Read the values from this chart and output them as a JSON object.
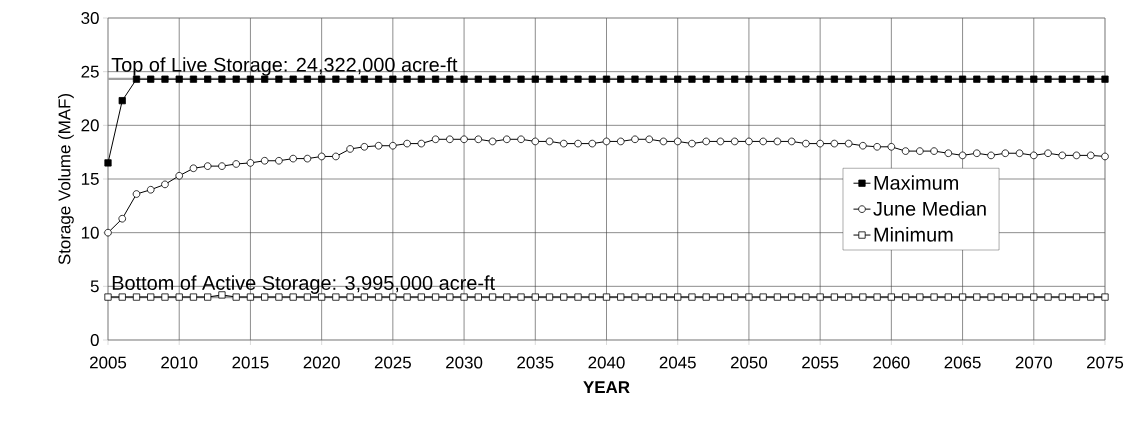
{
  "chart_data": {
    "type": "line",
    "xlabel": "YEAR",
    "ylabel": "Storage Volume (MAF)",
    "x": [
      2005,
      2006,
      2007,
      2008,
      2009,
      2010,
      2011,
      2012,
      2013,
      2014,
      2015,
      2016,
      2017,
      2018,
      2019,
      2020,
      2021,
      2022,
      2023,
      2024,
      2025,
      2026,
      2027,
      2028,
      2029,
      2030,
      2031,
      2032,
      2033,
      2034,
      2035,
      2036,
      2037,
      2038,
      2039,
      2040,
      2041,
      2042,
      2043,
      2044,
      2045,
      2046,
      2047,
      2048,
      2049,
      2050,
      2051,
      2052,
      2053,
      2054,
      2055,
      2056,
      2057,
      2058,
      2059,
      2060,
      2061,
      2062,
      2063,
      2064,
      2065,
      2066,
      2067,
      2068,
      2069,
      2070,
      2071,
      2072,
      2073,
      2074,
      2075
    ],
    "series": [
      {
        "name": "Maximum",
        "color": "#000000",
        "marker": "square",
        "values": [
          16.5,
          22.3,
          24.3,
          24.3,
          24.3,
          24.3,
          24.3,
          24.3,
          24.3,
          24.3,
          24.3,
          24.3,
          24.3,
          24.3,
          24.3,
          24.3,
          24.3,
          24.3,
          24.3,
          24.3,
          24.3,
          24.3,
          24.3,
          24.3,
          24.3,
          24.3,
          24.3,
          24.3,
          24.3,
          24.3,
          24.3,
          24.3,
          24.3,
          24.3,
          24.3,
          24.3,
          24.3,
          24.3,
          24.3,
          24.3,
          24.3,
          24.3,
          24.3,
          24.3,
          24.3,
          24.3,
          24.3,
          24.3,
          24.3,
          24.3,
          24.3,
          24.3,
          24.3,
          24.3,
          24.3,
          24.3,
          24.3,
          24.3,
          24.3,
          24.3,
          24.3,
          24.3,
          24.3,
          24.3,
          24.3,
          24.3,
          24.3,
          24.3,
          24.3,
          24.3,
          24.3
        ]
      },
      {
        "name": "June Median",
        "color": "#000000",
        "marker": "circle",
        "values": [
          10.0,
          11.3,
          13.6,
          14.0,
          14.5,
          15.3,
          16.0,
          16.2,
          16.2,
          16.4,
          16.5,
          16.7,
          16.7,
          16.9,
          16.9,
          17.1,
          17.1,
          17.8,
          18.0,
          18.1,
          18.1,
          18.3,
          18.3,
          18.7,
          18.7,
          18.7,
          18.7,
          18.5,
          18.7,
          18.7,
          18.5,
          18.5,
          18.3,
          18.3,
          18.3,
          18.5,
          18.5,
          18.7,
          18.7,
          18.5,
          18.5,
          18.3,
          18.5,
          18.5,
          18.5,
          18.5,
          18.5,
          18.5,
          18.5,
          18.3,
          18.3,
          18.3,
          18.3,
          18.1,
          18.0,
          18.0,
          17.6,
          17.6,
          17.6,
          17.4,
          17.2,
          17.4,
          17.2,
          17.4,
          17.4,
          17.2,
          17.4,
          17.2,
          17.2,
          17.2,
          17.1
        ]
      },
      {
        "name": "Minimum",
        "color": "#000000",
        "marker": "square",
        "values": [
          4.0,
          4.0,
          4.0,
          4.0,
          4.0,
          4.0,
          4.0,
          4.0,
          4.2,
          4.0,
          4.0,
          4.0,
          4.0,
          4.0,
          4.0,
          4.0,
          4.0,
          4.0,
          4.0,
          4.0,
          4.0,
          4.0,
          4.0,
          4.0,
          4.0,
          4.0,
          4.0,
          4.0,
          4.0,
          4.0,
          4.0,
          4.0,
          4.0,
          4.0,
          4.0,
          4.0,
          4.0,
          4.0,
          4.0,
          4.0,
          4.0,
          4.0,
          4.0,
          4.0,
          4.0,
          4.0,
          4.0,
          4.0,
          4.0,
          4.0,
          4.0,
          4.0,
          4.0,
          4.0,
          4.0,
          4.0,
          4.0,
          4.0,
          4.0,
          4.0,
          4.0,
          4.0,
          4.0,
          4.0,
          4.0,
          4.0,
          4.0,
          4.0,
          4.0,
          4.0,
          4.0
        ]
      }
    ],
    "xlim": [
      2005,
      2075
    ],
    "xticks": [
      2005,
      2010,
      2015,
      2020,
      2025,
      2030,
      2035,
      2040,
      2045,
      2050,
      2055,
      2060,
      2065,
      2070,
      2075
    ],
    "ylim": [
      0,
      30
    ],
    "yticks": [
      0,
      5,
      10,
      15,
      20,
      25,
      30
    ],
    "ref_lines": [
      {
        "axis": "y",
        "value": 24.322,
        "label": "Top of Live Storage: 24,322,000 acre-ft",
        "color": "#a0a0a0"
      },
      {
        "axis": "y",
        "value": 3.995,
        "label": "Bottom of Active Storage: 3,995,000 acre-ft",
        "color": "#a0a0a0"
      }
    ],
    "grid": true,
    "legend": "right",
    "line_style": "solid"
  }
}
